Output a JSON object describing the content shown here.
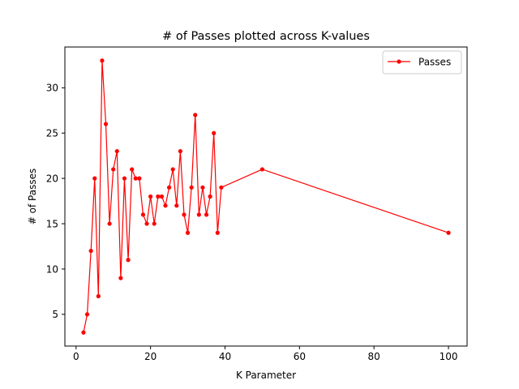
{
  "chart_data": {
    "type": "line",
    "title": "# of Passes plotted across K-values",
    "xlabel": "K Parameter",
    "ylabel": "# of Passes",
    "xlim": [
      -3,
      105
    ],
    "ylim": [
      1.5,
      34.5
    ],
    "xticks": [
      0,
      20,
      40,
      60,
      80,
      100
    ],
    "yticks": [
      5,
      10,
      15,
      20,
      25,
      30
    ],
    "xtick_labels": [
      "0",
      "20",
      "40",
      "60",
      "80",
      "100"
    ],
    "ytick_labels": [
      "5",
      "10",
      "15",
      "20",
      "25",
      "30"
    ],
    "grid": false,
    "legend_position": "top-right",
    "series": [
      {
        "name": "Passes",
        "color": "#ff0000",
        "marker": "circle",
        "x": [
          2,
          3,
          4,
          5,
          6,
          7,
          8,
          9,
          10,
          11,
          12,
          13,
          14,
          15,
          16,
          17,
          18,
          19,
          20,
          21,
          22,
          23,
          24,
          25,
          26,
          27,
          28,
          29,
          30,
          31,
          32,
          33,
          34,
          35,
          36,
          37,
          38,
          39,
          50,
          100
        ],
        "values": [
          3,
          5,
          12,
          20,
          7,
          33,
          26,
          15,
          21,
          23,
          9,
          20,
          11,
          21,
          20,
          20,
          16,
          15,
          18,
          15,
          18,
          18,
          17,
          19,
          21,
          17,
          23,
          16,
          14,
          19,
          27,
          16,
          19,
          16,
          18,
          25,
          14,
          19,
          21,
          14
        ]
      }
    ]
  }
}
